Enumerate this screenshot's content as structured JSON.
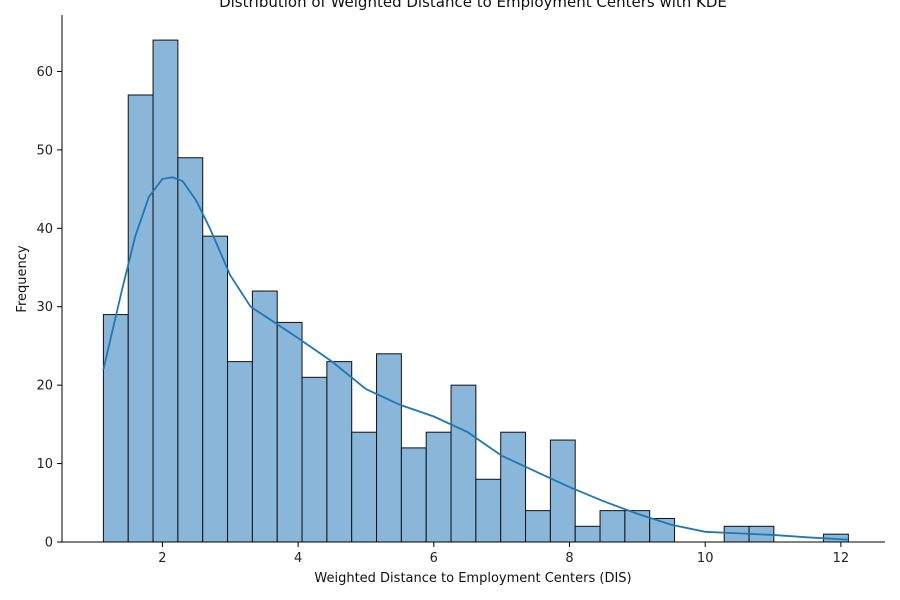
{
  "chart_data": {
    "type": "bar",
    "title": "Distribution of Weighted Distance to Employment Centers with KDE",
    "xlabel": "Weighted Distance to Employment Centers (DIS)",
    "ylabel": "Frequency",
    "xlim": [
      0.52,
      12.65
    ],
    "ylim": [
      0,
      67.2
    ],
    "xticks": [
      2,
      4,
      6,
      8,
      10,
      12
    ],
    "yticks": [
      0,
      10,
      20,
      30,
      40,
      50,
      60
    ],
    "grid": false,
    "bin_start": 1.13,
    "bin_width": 0.366,
    "values": [
      29,
      57,
      64,
      49,
      39,
      23,
      32,
      28,
      21,
      23,
      14,
      24,
      12,
      14,
      20,
      8,
      14,
      4,
      13,
      2,
      4,
      4,
      3,
      0,
      0,
      2,
      2,
      0,
      0,
      1
    ],
    "bar_color": "#89b6d9",
    "bar_edge": "#111111",
    "kde": {
      "color": "#1f77b4",
      "x": [
        1.13,
        1.4,
        1.6,
        1.8,
        2.0,
        2.15,
        2.3,
        2.5,
        2.7,
        3.0,
        3.3,
        3.6,
        4.0,
        4.5,
        5.0,
        5.5,
        6.0,
        6.5,
        7.0,
        7.5,
        8.0,
        8.5,
        9.0,
        9.5,
        10.0,
        10.5,
        11.0,
        11.5,
        12.1
      ],
      "y": [
        22,
        32,
        39,
        44,
        46.3,
        46.5,
        46,
        43.5,
        40,
        34,
        30,
        28.3,
        26,
        23,
        19.5,
        17.5,
        16,
        14,
        11,
        9,
        7,
        5.2,
        3.6,
        2.2,
        1.3,
        1.1,
        0.9,
        0.6,
        0.3
      ]
    }
  }
}
